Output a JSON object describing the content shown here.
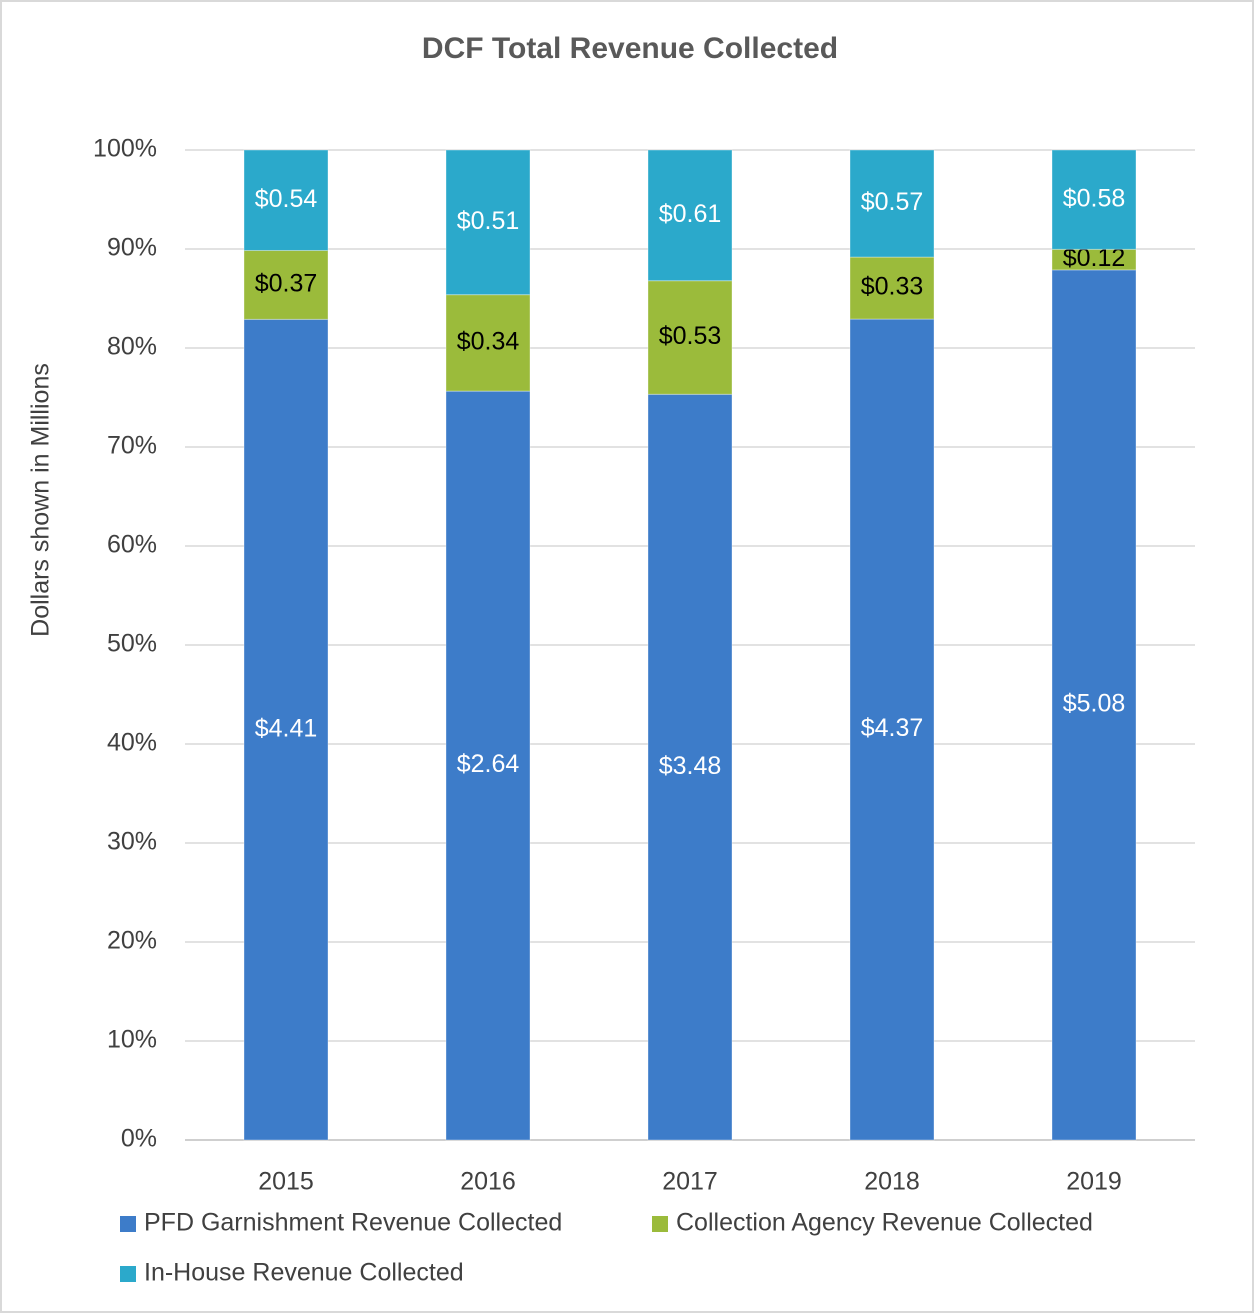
{
  "chart_data": {
    "type": "bar",
    "stacking": "percent",
    "title": "DCF Total Revenue Collected",
    "y_label": "Dollars shown in Millions",
    "categories": [
      "2015",
      "2016",
      "2017",
      "2018",
      "2019"
    ],
    "series": [
      {
        "name": "PFD Garnishment Revenue Collected",
        "color": "#3d7cc9",
        "label_color": "#ffffff",
        "values": [
          4.41,
          2.64,
          3.48,
          4.37,
          5.08
        ],
        "value_labels": [
          "$4.41",
          "$2.64",
          "$3.48",
          "$4.37",
          "$5.08"
        ]
      },
      {
        "name": "Collection Agency Revenue Collected",
        "color": "#9bbb3b",
        "label_color": "#000000",
        "values": [
          0.37,
          0.34,
          0.53,
          0.33,
          0.12
        ],
        "value_labels": [
          "$0.37",
          "$0.34",
          "$0.53",
          "$0.33",
          "$0.12"
        ]
      },
      {
        "name": "In-House Revenue Collected",
        "color": "#2ba9cb",
        "label_color": "#ffffff",
        "values": [
          0.54,
          0.51,
          0.61,
          0.57,
          0.58
        ],
        "value_labels": [
          "$0.54",
          "$0.51",
          "$0.61",
          "$0.57",
          "$0.58"
        ]
      }
    ],
    "ylim": [
      0,
      100
    ],
    "yticks": [
      {
        "value": 0,
        "label": "0%"
      },
      {
        "value": 10,
        "label": "10%"
      },
      {
        "value": 20,
        "label": "20%"
      },
      {
        "value": 30,
        "label": "30%"
      },
      {
        "value": 40,
        "label": "40%"
      },
      {
        "value": 50,
        "label": "50%"
      },
      {
        "value": 60,
        "label": "60%"
      },
      {
        "value": 70,
        "label": "70%"
      },
      {
        "value": 80,
        "label": "80%"
      },
      {
        "value": 90,
        "label": "90%"
      },
      {
        "value": 100,
        "label": "100%"
      }
    ],
    "grid": true,
    "legend": "bottom"
  }
}
